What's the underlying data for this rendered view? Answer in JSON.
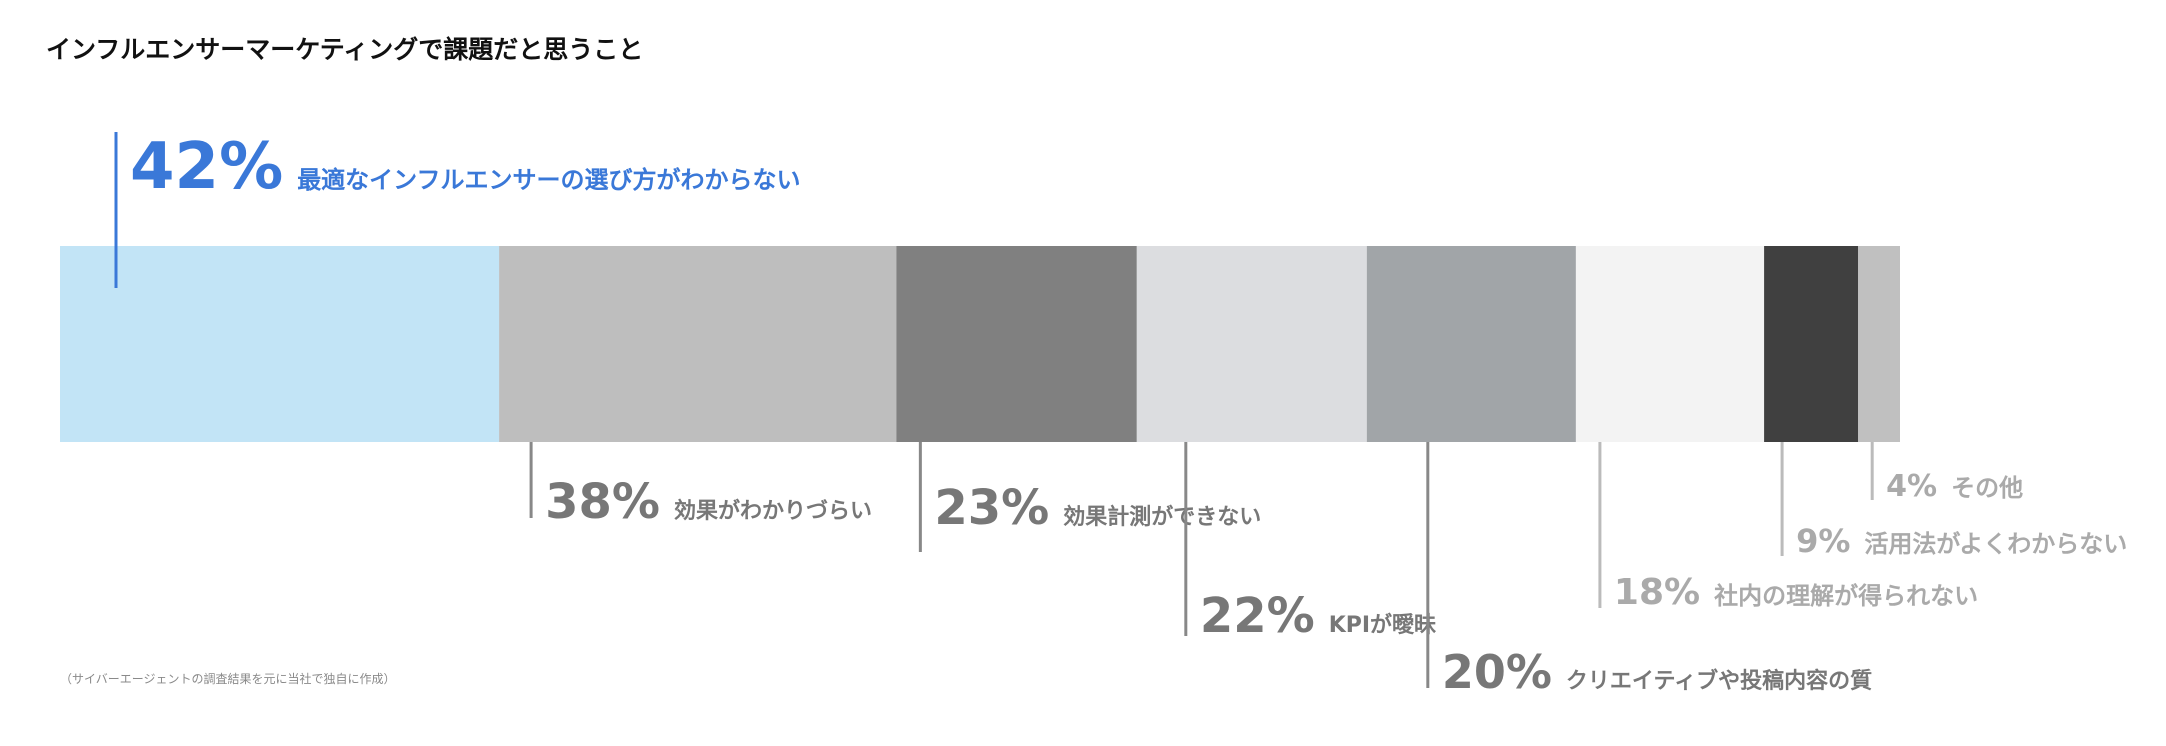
{
  "title": "インフルエンサーマーケティングで課題だと思うこと",
  "note": "（サイバーエージェントの調査結果を元に当社で独自に作成）",
  "chart_data": {
    "type": "bar",
    "title": "インフルエンサーマーケティングで課題だと思うこと",
    "xlabel": "",
    "ylabel": "",
    "unit": "%",
    "categories": [
      "最適なインフルエンサーの選び方がわからない",
      "効果がわかりづらい",
      "効果計測ができない",
      "KPIが曖昧",
      "クリエイティブや投稿内容の質",
      "社内の理解が得られない",
      "活用法がよくわからない",
      "その他"
    ],
    "values": [
      42,
      38,
      23,
      22,
      20,
      18,
      9,
      4
    ],
    "value_labels": [
      "42%",
      "38%",
      "23%",
      "22%",
      "20%",
      "18%",
      "9%",
      "4%"
    ],
    "colors": [
      "#c2e4f6",
      "#bebebe",
      "#808080",
      "#dcdde0",
      "#a1a5a8",
      "#f3f3f3",
      "#404040",
      "#c0c0c0"
    ],
    "label_colors": [
      "#3a78d8",
      "#777777",
      "#777777",
      "#777777",
      "#777777",
      "#aaaaaa",
      "#aaaaaa",
      "#aaaaaa"
    ],
    "highlight_color": "#3a78d8",
    "legend": "none",
    "grid": false
  }
}
